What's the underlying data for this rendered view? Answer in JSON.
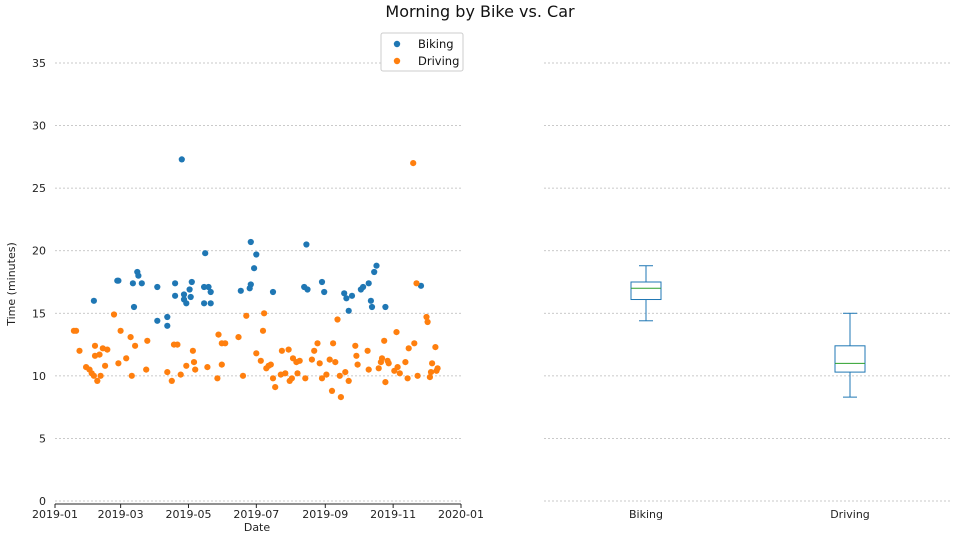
{
  "chart_data": [
    {
      "type": "scatter",
      "title": "Morning by Bike vs. Car",
      "xlabel": "Date",
      "ylabel": "Time (minutes)",
      "x_ticks": [
        "2019-01",
        "2019-03",
        "2019-05",
        "2019-07",
        "2019-09",
        "2019-11",
        "2020-01"
      ],
      "xlim": [
        "2019-01-01",
        "2020-01-01"
      ],
      "ylim": [
        -2,
        37
      ],
      "y_ticks": [
        0,
        5,
        10,
        15,
        20,
        25,
        30,
        35
      ],
      "grid": "horizontal dashed",
      "legend": "top-center",
      "series": [
        {
          "name": "Biking",
          "color": "#1f77b4",
          "points": [
            [
              "2019-02-05",
              16.0
            ],
            [
              "2019-02-26",
              17.6
            ],
            [
              "2019-02-27",
              17.6
            ],
            [
              "2019-03-12",
              17.4
            ],
            [
              "2019-03-13",
              15.5
            ],
            [
              "2019-03-16",
              18.3
            ],
            [
              "2019-03-17",
              18.0
            ],
            [
              "2019-03-20",
              17.4
            ],
            [
              "2019-04-03",
              17.1
            ],
            [
              "2019-04-03",
              14.4
            ],
            [
              "2019-04-12",
              14.7
            ],
            [
              "2019-04-12",
              14.0
            ],
            [
              "2019-04-19",
              16.4
            ],
            [
              "2019-04-19",
              17.4
            ],
            [
              "2019-04-25",
              27.3
            ],
            [
              "2019-04-27",
              16.1
            ],
            [
              "2019-04-27",
              16.5
            ],
            [
              "2019-04-29",
              15.8
            ],
            [
              "2019-05-02",
              16.9
            ],
            [
              "2019-05-03",
              16.3
            ],
            [
              "2019-05-04",
              17.5
            ],
            [
              "2019-05-15",
              17.1
            ],
            [
              "2019-05-16",
              19.8
            ],
            [
              "2019-05-15",
              15.8
            ],
            [
              "2019-05-19",
              17.1
            ],
            [
              "2019-05-21",
              16.7
            ],
            [
              "2019-05-21",
              15.8
            ],
            [
              "2019-06-17",
              16.8
            ],
            [
              "2019-06-25",
              17.0
            ],
            [
              "2019-06-26",
              17.3
            ],
            [
              "2019-06-26",
              20.7
            ],
            [
              "2019-06-29",
              18.6
            ],
            [
              "2019-07-01",
              19.7
            ],
            [
              "2019-07-16",
              16.7
            ],
            [
              "2019-08-13",
              17.1
            ],
            [
              "2019-08-15",
              20.5
            ],
            [
              "2019-08-16",
              16.9
            ],
            [
              "2019-08-29",
              17.5
            ],
            [
              "2019-08-31",
              16.7
            ],
            [
              "2019-09-18",
              16.6
            ],
            [
              "2019-09-20",
              16.2
            ],
            [
              "2019-09-22",
              15.2
            ],
            [
              "2019-09-25",
              16.4
            ],
            [
              "2019-10-03",
              16.9
            ],
            [
              "2019-10-05",
              17.1
            ],
            [
              "2019-10-10",
              17.4
            ],
            [
              "2019-10-12",
              16.0
            ],
            [
              "2019-10-13",
              15.5
            ],
            [
              "2019-10-15",
              18.3
            ],
            [
              "2019-10-17",
              18.8
            ],
            [
              "2019-10-25",
              15.5
            ],
            [
              "2019-11-26",
              17.2
            ]
          ]
        },
        {
          "name": "Driving",
          "color": "#ff7f0e",
          "points": [
            [
              "2019-01-18",
              13.6
            ],
            [
              "2019-01-20",
              13.6
            ],
            [
              "2019-01-23",
              12.0
            ],
            [
              "2019-01-29",
              10.7
            ],
            [
              "2019-02-01",
              10.5
            ],
            [
              "2019-02-03",
              10.2
            ],
            [
              "2019-02-05",
              10.0
            ],
            [
              "2019-02-06",
              12.4
            ],
            [
              "2019-02-06",
              11.6
            ],
            [
              "2019-02-08",
              9.6
            ],
            [
              "2019-02-10",
              11.7
            ],
            [
              "2019-02-11",
              10.0
            ],
            [
              "2019-02-13",
              12.2
            ],
            [
              "2019-02-15",
              10.8
            ],
            [
              "2019-02-17",
              12.1
            ],
            [
              "2019-02-23",
              14.9
            ],
            [
              "2019-02-27",
              11.0
            ],
            [
              "2019-03-01",
              13.6
            ],
            [
              "2019-03-06",
              11.4
            ],
            [
              "2019-03-10",
              13.1
            ],
            [
              "2019-03-11",
              10.0
            ],
            [
              "2019-03-14",
              12.4
            ],
            [
              "2019-03-24",
              10.5
            ],
            [
              "2019-03-25",
              12.8
            ],
            [
              "2019-04-12",
              10.3
            ],
            [
              "2019-04-16",
              9.6
            ],
            [
              "2019-04-18",
              12.5
            ],
            [
              "2019-04-21",
              12.5
            ],
            [
              "2019-04-24",
              10.1
            ],
            [
              "2019-04-29",
              10.8
            ],
            [
              "2019-05-05",
              12.0
            ],
            [
              "2019-05-06",
              11.1
            ],
            [
              "2019-05-07",
              10.5
            ],
            [
              "2019-05-18",
              10.7
            ],
            [
              "2019-05-27",
              9.8
            ],
            [
              "2019-05-28",
              13.3
            ],
            [
              "2019-05-31",
              10.9
            ],
            [
              "2019-05-31",
              12.6
            ],
            [
              "2019-06-03",
              12.6
            ],
            [
              "2019-06-15",
              13.1
            ],
            [
              "2019-06-19",
              10.0
            ],
            [
              "2019-06-22",
              14.8
            ],
            [
              "2019-07-01",
              11.8
            ],
            [
              "2019-07-05",
              11.2
            ],
            [
              "2019-07-07",
              13.6
            ],
            [
              "2019-07-08",
              15.0
            ],
            [
              "2019-07-10",
              10.6
            ],
            [
              "2019-07-12",
              10.8
            ],
            [
              "2019-07-14",
              10.9
            ],
            [
              "2019-07-16",
              9.8
            ],
            [
              "2019-07-18",
              9.1
            ],
            [
              "2019-07-23",
              10.1
            ],
            [
              "2019-07-24",
              12.0
            ],
            [
              "2019-07-27",
              10.2
            ],
            [
              "2019-07-30",
              12.1
            ],
            [
              "2019-07-31",
              9.6
            ],
            [
              "2019-08-02",
              9.8
            ],
            [
              "2019-08-03",
              11.4
            ],
            [
              "2019-08-06",
              11.1
            ],
            [
              "2019-08-07",
              10.2
            ],
            [
              "2019-08-09",
              11.2
            ],
            [
              "2019-08-14",
              9.8
            ],
            [
              "2019-08-20",
              11.3
            ],
            [
              "2019-08-22",
              12.0
            ],
            [
              "2019-08-25",
              12.6
            ],
            [
              "2019-08-27",
              11.0
            ],
            [
              "2019-08-29",
              9.8
            ],
            [
              "2019-09-02",
              10.1
            ],
            [
              "2019-09-05",
              11.3
            ],
            [
              "2019-09-07",
              8.8
            ],
            [
              "2019-09-08",
              12.6
            ],
            [
              "2019-09-10",
              11.1
            ],
            [
              "2019-09-12",
              14.5
            ],
            [
              "2019-09-14",
              10.0
            ],
            [
              "2019-09-15",
              8.3
            ],
            [
              "2019-09-19",
              10.3
            ],
            [
              "2019-09-22",
              9.6
            ],
            [
              "2019-09-28",
              12.4
            ],
            [
              "2019-09-29",
              11.6
            ],
            [
              "2019-09-30",
              10.9
            ],
            [
              "2019-10-09",
              12.0
            ],
            [
              "2019-10-10",
              10.5
            ],
            [
              "2019-10-19",
              10.6
            ],
            [
              "2019-10-21",
              11.1
            ],
            [
              "2019-10-22",
              11.4
            ],
            [
              "2019-10-24",
              12.8
            ],
            [
              "2019-10-25",
              9.5
            ],
            [
              "2019-10-27",
              11.2
            ],
            [
              "2019-10-28",
              11.0
            ],
            [
              "2019-11-02",
              10.4
            ],
            [
              "2019-11-04",
              13.5
            ],
            [
              "2019-11-05",
              10.7
            ],
            [
              "2019-11-07",
              10.2
            ],
            [
              "2019-11-12",
              11.1
            ],
            [
              "2019-11-14",
              9.8
            ],
            [
              "2019-11-15",
              12.2
            ],
            [
              "2019-11-19",
              27.0
            ],
            [
              "2019-11-20",
              12.6
            ],
            [
              "2019-11-22",
              17.4
            ],
            [
              "2019-11-23",
              10.0
            ],
            [
              "2019-12-01",
              14.7
            ],
            [
              "2019-12-02",
              14.3
            ],
            [
              "2019-12-04",
              9.9
            ],
            [
              "2019-12-05",
              10.3
            ],
            [
              "2019-12-06",
              11.0
            ],
            [
              "2019-12-09",
              12.3
            ],
            [
              "2019-12-10",
              10.4
            ],
            [
              "2019-12-11",
              10.6
            ]
          ]
        }
      ]
    },
    {
      "type": "boxplot",
      "categories": [
        "Biking",
        "Driving"
      ],
      "ylim": [
        -2,
        37
      ],
      "y_ticks": [
        0,
        5,
        10,
        15,
        20,
        25,
        30,
        35
      ],
      "grid": "horizontal dashed",
      "box_color": "#1f77b4",
      "median_color": "#2ca02c",
      "boxes": [
        {
          "name": "Biking",
          "whisker_low": 14.4,
          "q1": 16.1,
          "median": 17.0,
          "q3": 17.5,
          "whisker_high": 18.8
        },
        {
          "name": "Driving",
          "whisker_low": 8.3,
          "q1": 10.3,
          "median": 11.0,
          "q3": 12.4,
          "whisker_high": 15.0
        }
      ]
    }
  ]
}
